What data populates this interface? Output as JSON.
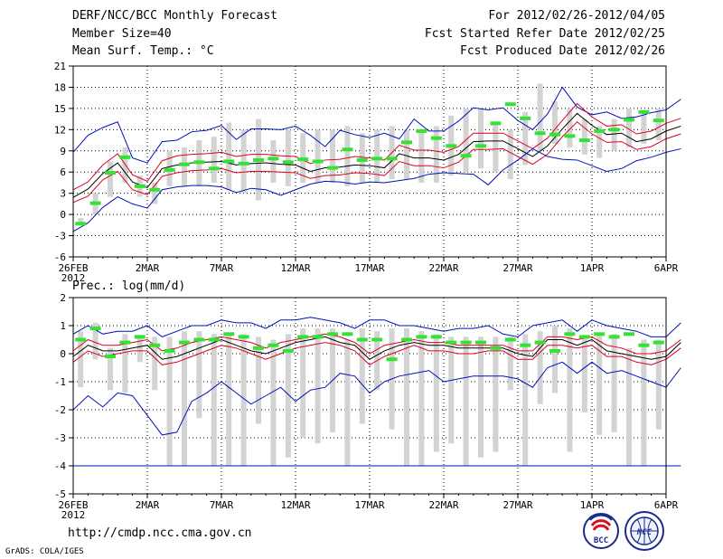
{
  "header": {
    "title": "DERF/NCC/BCC Monthly Forecast",
    "member_size": "Member Size=40",
    "period": "For 2012/02/26-2012/04/05",
    "fcst_started": "Fcst Started Refer Date 2012/02/25",
    "fcst_produced": "Fcst Produced Date 2012/02/26"
  },
  "footer": {
    "url": "http://cmdp.ncc.cma.gov.cn",
    "credit": "GrADS: COLA/IGES"
  },
  "logos": {
    "bcc": {
      "text": "BCC"
    },
    "ncc": {
      "text": "NCC"
    }
  },
  "colors": {
    "box": "#d3d3d3",
    "median": "#000000",
    "mean_band": "#dd0022",
    "extreme": "#0010b8",
    "observed_bar": "#33e233",
    "grid": "#000000"
  },
  "chart_data": [
    {
      "type": "line",
      "title": "Mean Surf. Temp.: °C",
      "days": 40,
      "xtick_days": [
        1,
        6,
        11,
        16,
        21,
        26,
        31,
        36,
        41
      ],
      "xtick_labels": [
        "26FEB",
        "2MAR",
        "7MAR",
        "12MAR",
        "17MAR",
        "22MAR",
        "27MAR",
        "1APR",
        "6APR"
      ],
      "xsub_label": "2012",
      "ylim": [
        -6,
        21
      ],
      "yticks": [
        -6,
        -3,
        0,
        3,
        6,
        9,
        12,
        15,
        18,
        21
      ],
      "box_low": [
        -1.5,
        0,
        2.5,
        4.5,
        2.5,
        1.5,
        4,
        4,
        4,
        4.5,
        3.5,
        3,
        2,
        4.5,
        4,
        4.5,
        4.5,
        4.5,
        4,
        4.5,
        4.5,
        5,
        5,
        4.5,
        4.5,
        5.5,
        6,
        6.5,
        6,
        5,
        7,
        9,
        10,
        9.5,
        8.5,
        8,
        9,
        9.5,
        10,
        10.5
      ],
      "box_high": [
        -0.5,
        3,
        7.5,
        9.5,
        5.5,
        4.5,
        9,
        9.5,
        10.5,
        11,
        13,
        12,
        13.5,
        10.5,
        12,
        11.5,
        12,
        12,
        12.5,
        11.5,
        12,
        12.5,
        12,
        12,
        12.5,
        14,
        15,
        15,
        13,
        12,
        14.5,
        18.5,
        16,
        15,
        13.5,
        12.5,
        13.5,
        15,
        14.5,
        15
      ],
      "series": [
        {
          "name": "ensemble max",
          "values": [
            8.8,
            11.2,
            12.3,
            13.1,
            8.0,
            7.3,
            10.3,
            10.5,
            11.7,
            11.9,
            12.6,
            10.6,
            12.1,
            12.1,
            12.0,
            12.5,
            11.2,
            9.6,
            11.9,
            11.3,
            10.9,
            11.5,
            10.7,
            13.5,
            11.8,
            11.8,
            13.2,
            15.1,
            14.8,
            15.1,
            13.3,
            12.0,
            14.2,
            18.0,
            15.2,
            14.1,
            14.5,
            13.6,
            13.8,
            14.4,
            14.8,
            16.3
          ]
        },
        {
          "name": "mean + spread",
          "values": [
            3.5,
            4.6,
            7.0,
            8.6,
            5.6,
            4.7,
            7.6,
            8.3,
            8.5,
            8.6,
            8.8,
            8.2,
            8.5,
            8.5,
            8.3,
            8.2,
            7.2,
            7.7,
            7.8,
            8.2,
            8.0,
            7.7,
            9.8,
            9.1,
            9.1,
            8.8,
            9.6,
            11.5,
            11.5,
            11.5,
            10.4,
            9.3,
            10.8,
            13.3,
            15.7,
            13.8,
            12.5,
            12.7,
            11.4,
            11.8,
            12.9,
            13.6
          ]
        },
        {
          "name": "median",
          "values": [
            2.4,
            3.6,
            5.8,
            7.3,
            4.6,
            3.8,
            6.5,
            7.0,
            7.3,
            7.4,
            7.5,
            7.0,
            7.2,
            7.3,
            7.1,
            7.0,
            6.1,
            6.6,
            6.7,
            7.0,
            6.9,
            6.6,
            8.6,
            8.0,
            8.0,
            7.7,
            8.5,
            10.3,
            10.4,
            10.4,
            9.3,
            8.2,
            9.7,
            12.1,
            14.3,
            12.6,
            11.3,
            11.5,
            10.3,
            10.7,
            11.8,
            12.5
          ]
        },
        {
          "name": "mean - spread",
          "values": [
            1.7,
            2.6,
            4.9,
            6.1,
            3.5,
            2.8,
            5.4,
            5.9,
            6.2,
            6.3,
            6.5,
            5.9,
            6.1,
            6.1,
            6.0,
            5.9,
            5.1,
            5.5,
            5.6,
            5.9,
            5.8,
            5.5,
            7.5,
            6.9,
            6.9,
            6.6,
            7.4,
            9.2,
            9.2,
            9.3,
            8.2,
            7.1,
            8.5,
            11.0,
            13.1,
            11.4,
            10.2,
            10.3,
            9.2,
            9.6,
            10.7,
            11.4
          ]
        },
        {
          "name": "ensemble min",
          "values": [
            -2.4,
            -1.2,
            1.0,
            2.5,
            1.5,
            0.9,
            3.5,
            3.9,
            4.1,
            4.1,
            3.9,
            3.1,
            3.7,
            3.5,
            2.7,
            3.5,
            4.3,
            4.7,
            4.6,
            4.3,
            4.6,
            4.5,
            4.8,
            5.1,
            5.7,
            5.9,
            5.8,
            5.7,
            4.2,
            6.3,
            7.7,
            9.3,
            8.2,
            7.8,
            7.7,
            6.9,
            6.1,
            6.5,
            7.6,
            8.1,
            8.8,
            9.3
          ]
        }
      ],
      "observed": [
        -1.3,
        1.6,
        5.9,
        8.1,
        4.0,
        3.5,
        6.3,
        7.1,
        7.4,
        6.5,
        7.5,
        7.2,
        7.7,
        7.9,
        7.4,
        7.8,
        7.5,
        6.6,
        9.2,
        7.7,
        7.9,
        7.9,
        10.2,
        11.8,
        10.8,
        9.7,
        8.3,
        9.7,
        12.9,
        15.6,
        13.6,
        11.5,
        11.3,
        11.1,
        10.5,
        11.8,
        12.0,
        13.4,
        14.5,
        13.3
      ]
    },
    {
      "type": "line",
      "title": "Prec.: log(mm/d)",
      "days": 40,
      "xtick_days": [
        1,
        6,
        11,
        16,
        21,
        26,
        31,
        36,
        41
      ],
      "xtick_labels": [
        "26FEB",
        "2MAR",
        "7MAR",
        "12MAR",
        "17MAR",
        "22MAR",
        "27MAR",
        "1APR",
        "6APR"
      ],
      "xsub_label": "2012",
      "ylim": [
        -5,
        2
      ],
      "yticks": [
        -5,
        -4,
        -3,
        -2,
        -1,
        0,
        1,
        2
      ],
      "box_low": [
        -1.2,
        -0.2,
        -1.3,
        -1.4,
        -0.3,
        -1.3,
        -4,
        -4,
        -2.3,
        -4,
        -4,
        -4,
        -2.5,
        -4,
        -3.7,
        -3,
        -3.2,
        -2.8,
        -4,
        -2.5,
        -1.3,
        -2.7,
        -4,
        -4,
        -3.5,
        -3.2,
        -4,
        -3.7,
        -3.5,
        -1.3,
        -4,
        -1.8,
        -1.4,
        -3.5,
        -2.1,
        -2.9,
        -2.8,
        -4,
        -4,
        -2.7
      ],
      "box_high": [
        0.8,
        1.1,
        0.2,
        0.7,
        0.6,
        0.6,
        0.6,
        0.8,
        0.8,
        0.7,
        0.7,
        0.7,
        0.6,
        0.5,
        0.7,
        0.9,
        0.9,
        0.9,
        0.5,
        0.9,
        0.8,
        0.9,
        0.9,
        0.8,
        0.7,
        0.6,
        0.6,
        0.6,
        0.6,
        0.6,
        0.7,
        0.8,
        1.0,
        0.9,
        0.6,
        0.7,
        0.7,
        0.2,
        0.5,
        0.5
      ],
      "series": [
        {
          "name": "ensemble max",
          "values": [
            0.7,
            1.0,
            0.7,
            0.8,
            0.8,
            1.0,
            0.6,
            0.8,
            1.0,
            1.0,
            1.2,
            1.1,
            1.1,
            0.9,
            1.2,
            1.2,
            1.3,
            1.2,
            1.1,
            0.9,
            1.2,
            1.2,
            1.0,
            1.0,
            0.9,
            0.8,
            0.9,
            0.9,
            1.0,
            0.7,
            0.6,
            1.0,
            1.1,
            1.2,
            0.8,
            1.2,
            1.0,
            0.9,
            0.8,
            0.6,
            0.6,
            1.1
          ]
        },
        {
          "name": "mean + spread",
          "values": [
            0.1,
            0.5,
            0.3,
            0.3,
            0.4,
            0.5,
            0.1,
            0.2,
            0.4,
            0.5,
            0.6,
            0.5,
            0.4,
            0.2,
            0.4,
            0.5,
            0.6,
            0.7,
            0.6,
            0.4,
            0.0,
            0.3,
            0.4,
            0.5,
            0.4,
            0.4,
            0.3,
            0.3,
            0.3,
            0.3,
            0.1,
            0.1,
            0.6,
            0.6,
            0.5,
            0.6,
            0.3,
            0.2,
            0.0,
            0.0,
            0.1,
            0.5
          ]
        },
        {
          "name": "median",
          "values": [
            -0.1,
            0.3,
            0.1,
            0.1,
            0.2,
            0.3,
            -0.2,
            -0.1,
            0.1,
            0.3,
            0.5,
            0.3,
            0.1,
            -0.0,
            0.2,
            0.4,
            0.5,
            0.6,
            0.4,
            0.3,
            -0.2,
            0.1,
            0.3,
            0.4,
            0.3,
            0.3,
            0.2,
            0.2,
            0.2,
            0.2,
            -0.0,
            -0.1,
            0.5,
            0.5,
            0.3,
            0.5,
            0.1,
            0.0,
            -0.1,
            -0.2,
            -0.1,
            0.4
          ]
        },
        {
          "name": "mean - spread",
          "values": [
            -0.3,
            0.1,
            -0.1,
            -0.0,
            0.1,
            0.1,
            -0.4,
            -0.3,
            -0.1,
            0.1,
            0.3,
            0.2,
            0.0,
            -0.2,
            0.0,
            0.2,
            0.3,
            0.4,
            0.3,
            0.1,
            -0.4,
            -0.1,
            0.1,
            0.3,
            0.1,
            0.1,
            0.0,
            0.0,
            0.1,
            0.1,
            -0.2,
            -0.2,
            0.3,
            0.3,
            0.2,
            0.3,
            -0.1,
            -0.1,
            -0.3,
            -0.4,
            -0.2,
            0.2
          ]
        },
        {
          "name": "ensemble min",
          "values": [
            -2.0,
            -1.5,
            -1.9,
            -1.4,
            -1.5,
            -2.2,
            -2.9,
            -2.8,
            -1.7,
            -1.4,
            -1.0,
            -1.4,
            -1.8,
            -1.5,
            -1.2,
            -1.7,
            -1.3,
            -1.2,
            -0.7,
            -0.8,
            -1.4,
            -1.0,
            -0.8,
            -0.7,
            -0.6,
            -1.0,
            -0.9,
            -0.8,
            -0.8,
            -0.8,
            -0.9,
            -1.2,
            -0.5,
            -0.3,
            -0.7,
            -0.3,
            -0.7,
            -0.6,
            -0.8,
            -1.0,
            -1.2,
            -0.5
          ]
        },
        {
          "name": "lower bound",
          "values": [
            -4,
            -4,
            -4,
            -4,
            -4,
            -4,
            -4,
            -4,
            -4,
            -4,
            -4,
            -4,
            -4,
            -4,
            -4,
            -4,
            -4,
            -4,
            -4,
            -4,
            -4,
            -4,
            -4,
            -4,
            -4,
            -4,
            -4,
            -4,
            -4,
            -4,
            -4,
            -4,
            -4,
            -4,
            -4,
            -4,
            -4,
            -4,
            -4,
            -4,
            -4,
            -4
          ]
        }
      ],
      "observed": [
        0.5,
        0.9,
        -0.1,
        0.4,
        0.6,
        0.3,
        0.1,
        0.4,
        0.5,
        0.5,
        0.7,
        0.6,
        0.2,
        0.3,
        0.1,
        0.6,
        0.6,
        0.7,
        0.7,
        0.5,
        0.5,
        -0.2,
        0.5,
        0.6,
        0.6,
        0.4,
        0.4,
        0.4,
        0.2,
        0.5,
        0.3,
        0.4,
        0.1,
        0.7,
        0.6,
        0.7,
        0.6,
        0.7,
        0.3,
        0.4
      ]
    }
  ]
}
